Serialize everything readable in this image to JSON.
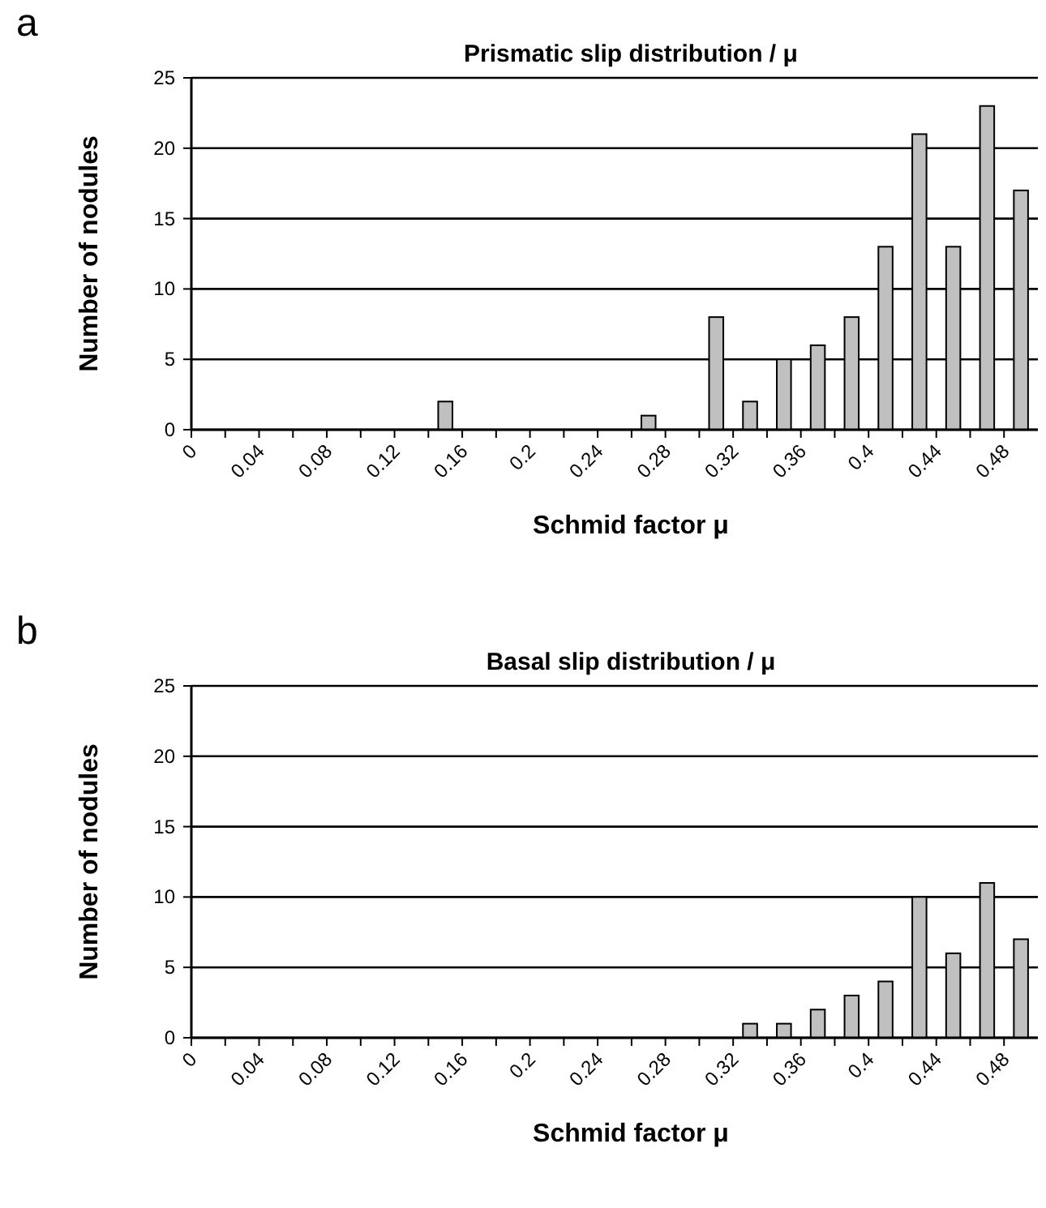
{
  "chart_data": [
    {
      "type": "histogram",
      "title": "Prismatic slip distribution / μ",
      "xlabel": "Schmid factor μ",
      "ylabel": "Number of nodules",
      "annotations": [
        "a"
      ],
      "bins": [
        0,
        0.02,
        0.04,
        0.06,
        0.08,
        0.1,
        0.12,
        0.14,
        0.16,
        0.18,
        0.2,
        0.22,
        0.24,
        0.26,
        0.28,
        0.3,
        0.32,
        0.34,
        0.36,
        0.38,
        0.4,
        0.42,
        0.44,
        0.46,
        0.48,
        0.5
      ],
      "values": [
        0,
        0,
        0,
        0,
        0,
        0,
        0,
        2,
        0,
        0,
        0,
        0,
        0,
        1,
        0,
        8,
        2,
        5,
        6,
        8,
        13,
        21,
        13,
        23,
        17
      ],
      "color": "#c0c0c0",
      "xlim": [
        0,
        0.5
      ],
      "xticks": [
        0,
        {
          "value": 0.02,
          "label": null
        },
        0.04,
        {
          "value": 0.06,
          "label": null
        },
        0.08,
        {
          "value": 0.1,
          "label": null
        },
        0.12,
        {
          "value": 0.14,
          "label": null
        },
        0.16,
        {
          "value": 0.18,
          "label": null
        },
        {
          "value": 0.2,
          "label": "0.2"
        },
        {
          "value": 0.22,
          "label": null
        },
        0.24,
        {
          "value": 0.26,
          "label": null
        },
        0.28,
        {
          "value": 0.3,
          "label": null
        },
        0.32,
        {
          "value": 0.34,
          "label": null
        },
        0.36,
        {
          "value": 0.38,
          "label": null
        },
        {
          "value": 0.4,
          "label": "0.4"
        },
        {
          "value": 0.42,
          "label": null
        },
        0.44,
        {
          "value": 0.46,
          "label": null
        },
        0.48
      ],
      "ylim": [
        0,
        25
      ],
      "yticks": [
        0,
        5,
        10,
        15,
        20,
        25
      ],
      "grid": "y"
    },
    {
      "type": "histogram",
      "title": "Basal slip distribution / μ",
      "xlabel": "Schmid factor μ",
      "ylabel": "Number of nodules",
      "annotations": [
        "b"
      ],
      "bins": [
        0,
        0.02,
        0.04,
        0.06,
        0.08,
        0.1,
        0.12,
        0.14,
        0.16,
        0.18,
        0.2,
        0.22,
        0.24,
        0.26,
        0.28,
        0.3,
        0.32,
        0.34,
        0.36,
        0.38,
        0.4,
        0.42,
        0.44,
        0.46,
        0.48,
        0.5
      ],
      "values": [
        0,
        0,
        0,
        0,
        0,
        0,
        0,
        0,
        0,
        0,
        0,
        0,
        0,
        0,
        0,
        0,
        1,
        1,
        2,
        3,
        4,
        10,
        6,
        11,
        7
      ],
      "color": "#c0c0c0",
      "xlim": [
        0,
        0.5
      ],
      "xticks": [
        0,
        {
          "value": 0.02,
          "label": null
        },
        0.04,
        {
          "value": 0.06,
          "label": null
        },
        0.08,
        {
          "value": 0.1,
          "label": null
        },
        0.12,
        {
          "value": 0.14,
          "label": null
        },
        0.16,
        {
          "value": 0.18,
          "label": null
        },
        {
          "value": 0.2,
          "label": "0.2"
        },
        {
          "value": 0.22,
          "label": null
        },
        0.24,
        {
          "value": 0.26,
          "label": null
        },
        0.28,
        {
          "value": 0.3,
          "label": null
        },
        0.32,
        {
          "value": 0.34,
          "label": null
        },
        0.36,
        {
          "value": 0.38,
          "label": null
        },
        {
          "value": 0.4,
          "label": "0.4"
        },
        {
          "value": 0.42,
          "label": null
        },
        0.44,
        {
          "value": 0.46,
          "label": null
        },
        0.48
      ],
      "ylim": [
        0,
        25
      ],
      "yticks": [
        0,
        5,
        10,
        15,
        20,
        25
      ],
      "grid": "y"
    }
  ]
}
